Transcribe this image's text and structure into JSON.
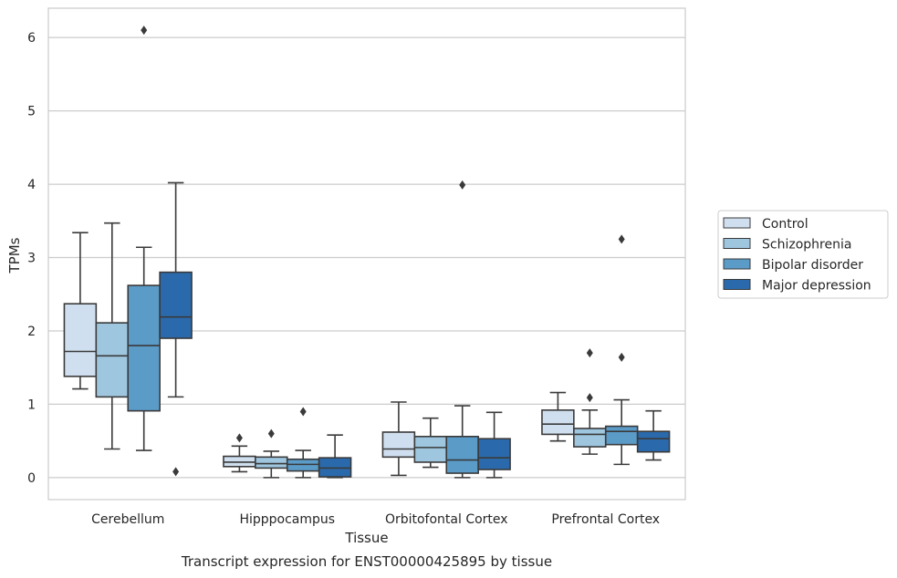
{
  "caption": "Transcript expression for ENST00000425895 by tissue",
  "chart_data": {
    "type": "boxplot",
    "xlabel": "Tissue",
    "ylabel": "TPMs",
    "ylim": [
      -0.3,
      6.4
    ],
    "yticks": [
      0,
      1,
      2,
      3,
      4,
      5,
      6
    ],
    "grid": true,
    "legend_position": "right",
    "categories": [
      "Cerebellum",
      "Hipppocampus",
      "Orbitofontal Cortex",
      "Prefrontal Cortex"
    ],
    "series": [
      {
        "name": "Control",
        "color": "#d0dfef",
        "boxes": [
          {
            "whislo": 1.21,
            "q1": 1.38,
            "med": 1.72,
            "q3": 2.37,
            "whishi": 3.34,
            "fliers": []
          },
          {
            "whislo": 0.08,
            "q1": 0.15,
            "med": 0.21,
            "q3": 0.29,
            "whishi": 0.43,
            "fliers": [
              0.54
            ]
          },
          {
            "whislo": 0.03,
            "q1": 0.28,
            "med": 0.39,
            "q3": 0.62,
            "whishi": 1.03,
            "fliers": []
          },
          {
            "whislo": 0.5,
            "q1": 0.59,
            "med": 0.73,
            "q3": 0.92,
            "whishi": 1.16,
            "fliers": []
          }
        ]
      },
      {
        "name": "Schizophrenia",
        "color": "#9fc6df",
        "boxes": [
          {
            "whislo": 0.39,
            "q1": 1.1,
            "med": 1.66,
            "q3": 2.11,
            "whishi": 3.47,
            "fliers": []
          },
          {
            "whislo": 0.0,
            "q1": 0.13,
            "med": 0.19,
            "q3": 0.28,
            "whishi": 0.36,
            "fliers": [
              0.6
            ]
          },
          {
            "whislo": 0.14,
            "q1": 0.21,
            "med": 0.41,
            "q3": 0.56,
            "whishi": 0.81,
            "fliers": []
          },
          {
            "whislo": 0.32,
            "q1": 0.42,
            "med": 0.59,
            "q3": 0.67,
            "whishi": 0.92,
            "fliers": [
              1.09,
              1.7
            ]
          }
        ]
      },
      {
        "name": "Bipolar disorder",
        "color": "#5b9bc8",
        "boxes": [
          {
            "whislo": 0.37,
            "q1": 0.91,
            "med": 1.8,
            "q3": 2.62,
            "whishi": 3.14,
            "fliers": [
              6.1
            ]
          },
          {
            "whislo": 0.0,
            "q1": 0.09,
            "med": 0.18,
            "q3": 0.25,
            "whishi": 0.37,
            "fliers": [
              0.9
            ]
          },
          {
            "whislo": 0.0,
            "q1": 0.06,
            "med": 0.24,
            "q3": 0.56,
            "whishi": 0.98,
            "fliers": [
              3.99
            ]
          },
          {
            "whislo": 0.18,
            "q1": 0.45,
            "med": 0.63,
            "q3": 0.7,
            "whishi": 1.06,
            "fliers": [
              1.64,
              3.25
            ]
          }
        ]
      },
      {
        "name": "Major depression",
        "color": "#2a6aac",
        "boxes": [
          {
            "whislo": 1.1,
            "q1": 1.9,
            "med": 2.19,
            "q3": 2.8,
            "whishi": 4.02,
            "fliers": [
              0.08
            ]
          },
          {
            "whislo": 0.0,
            "q1": 0.01,
            "med": 0.13,
            "q3": 0.27,
            "whishi": 0.58,
            "fliers": []
          },
          {
            "whislo": 0.0,
            "q1": 0.11,
            "med": 0.27,
            "q3": 0.53,
            "whishi": 0.89,
            "fliers": []
          },
          {
            "whislo": 0.24,
            "q1": 0.35,
            "med": 0.53,
            "q3": 0.63,
            "whishi": 0.91,
            "fliers": []
          }
        ]
      }
    ]
  }
}
